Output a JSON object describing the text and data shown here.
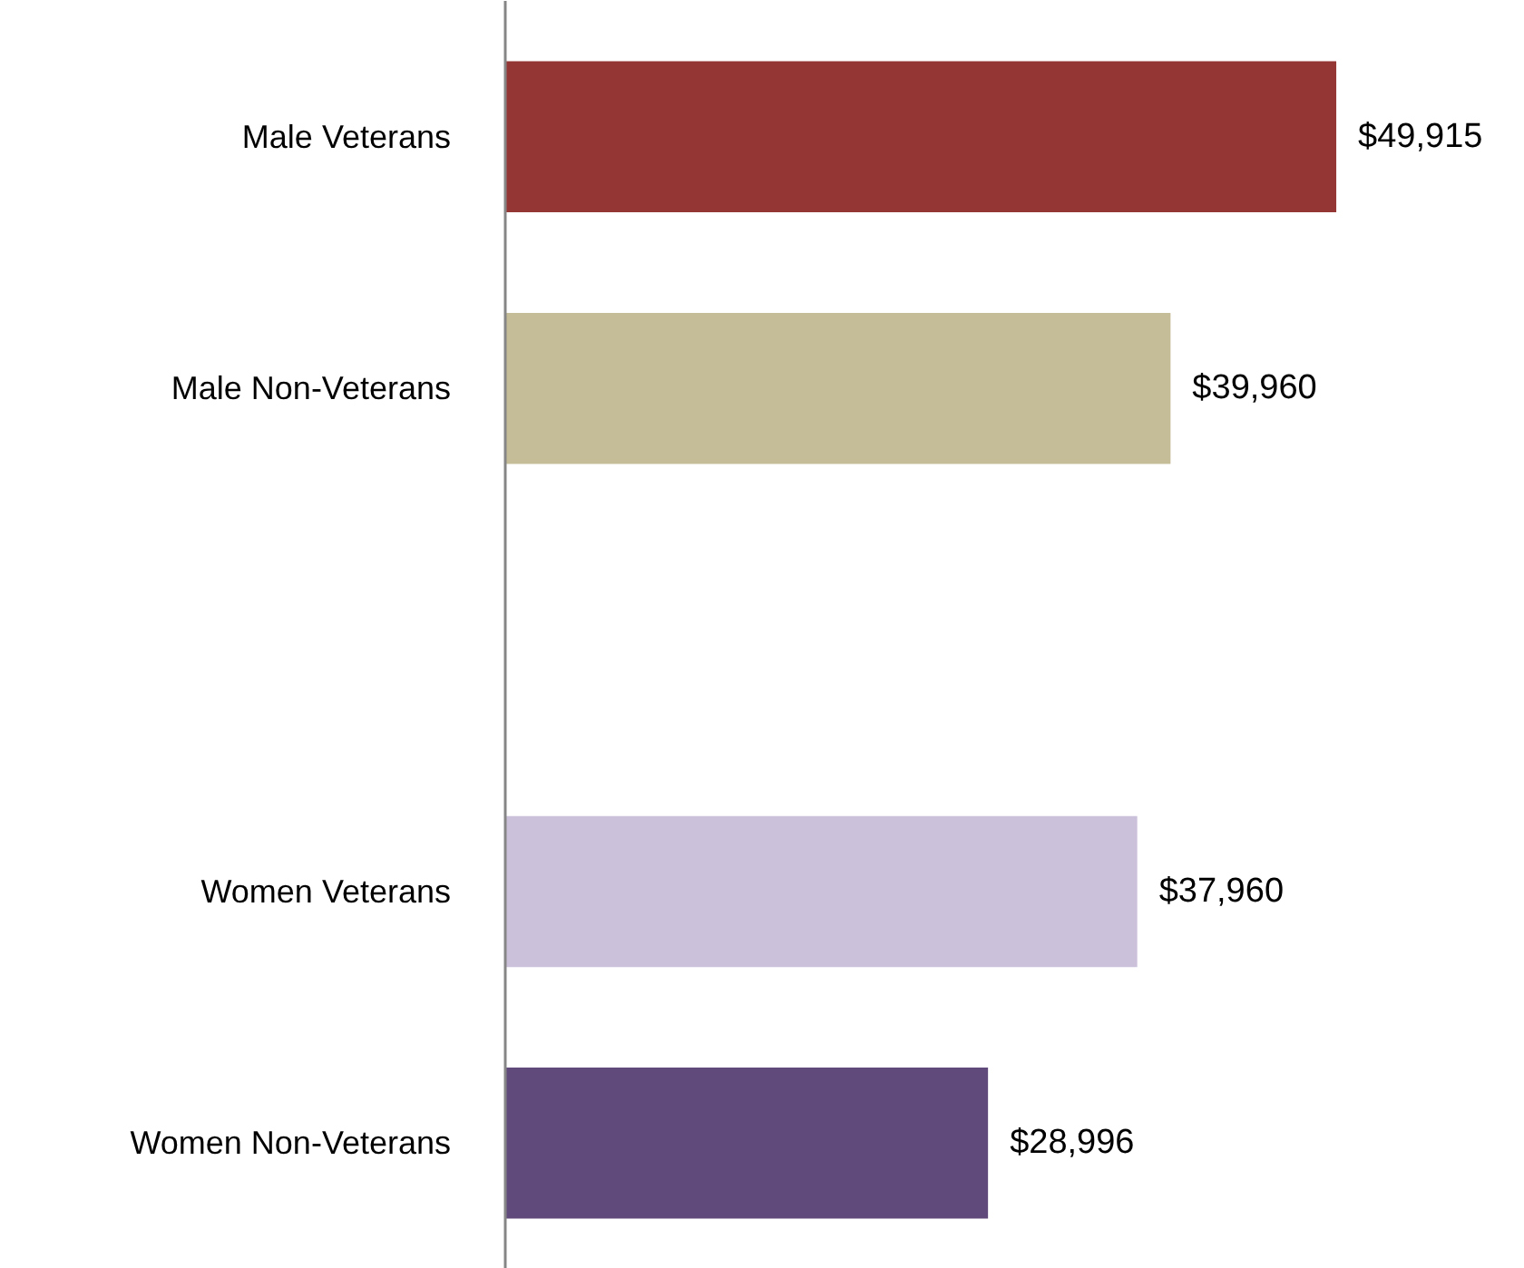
{
  "chart_data": {
    "type": "bar",
    "orientation": "horizontal",
    "categories": [
      "Male Veterans",
      "Male Non-Veterans",
      null,
      "Women Veterans",
      "Women Non-Veterans"
    ],
    "values": [
      49915,
      39960,
      null,
      37960,
      28996
    ],
    "colors": [
      "#943634",
      "#c4bd97",
      null,
      "#ccc1da",
      "#604a7b"
    ],
    "value_labels": [
      "$49,915",
      "$39,960",
      null,
      "$37,960",
      "$28,996"
    ]
  }
}
